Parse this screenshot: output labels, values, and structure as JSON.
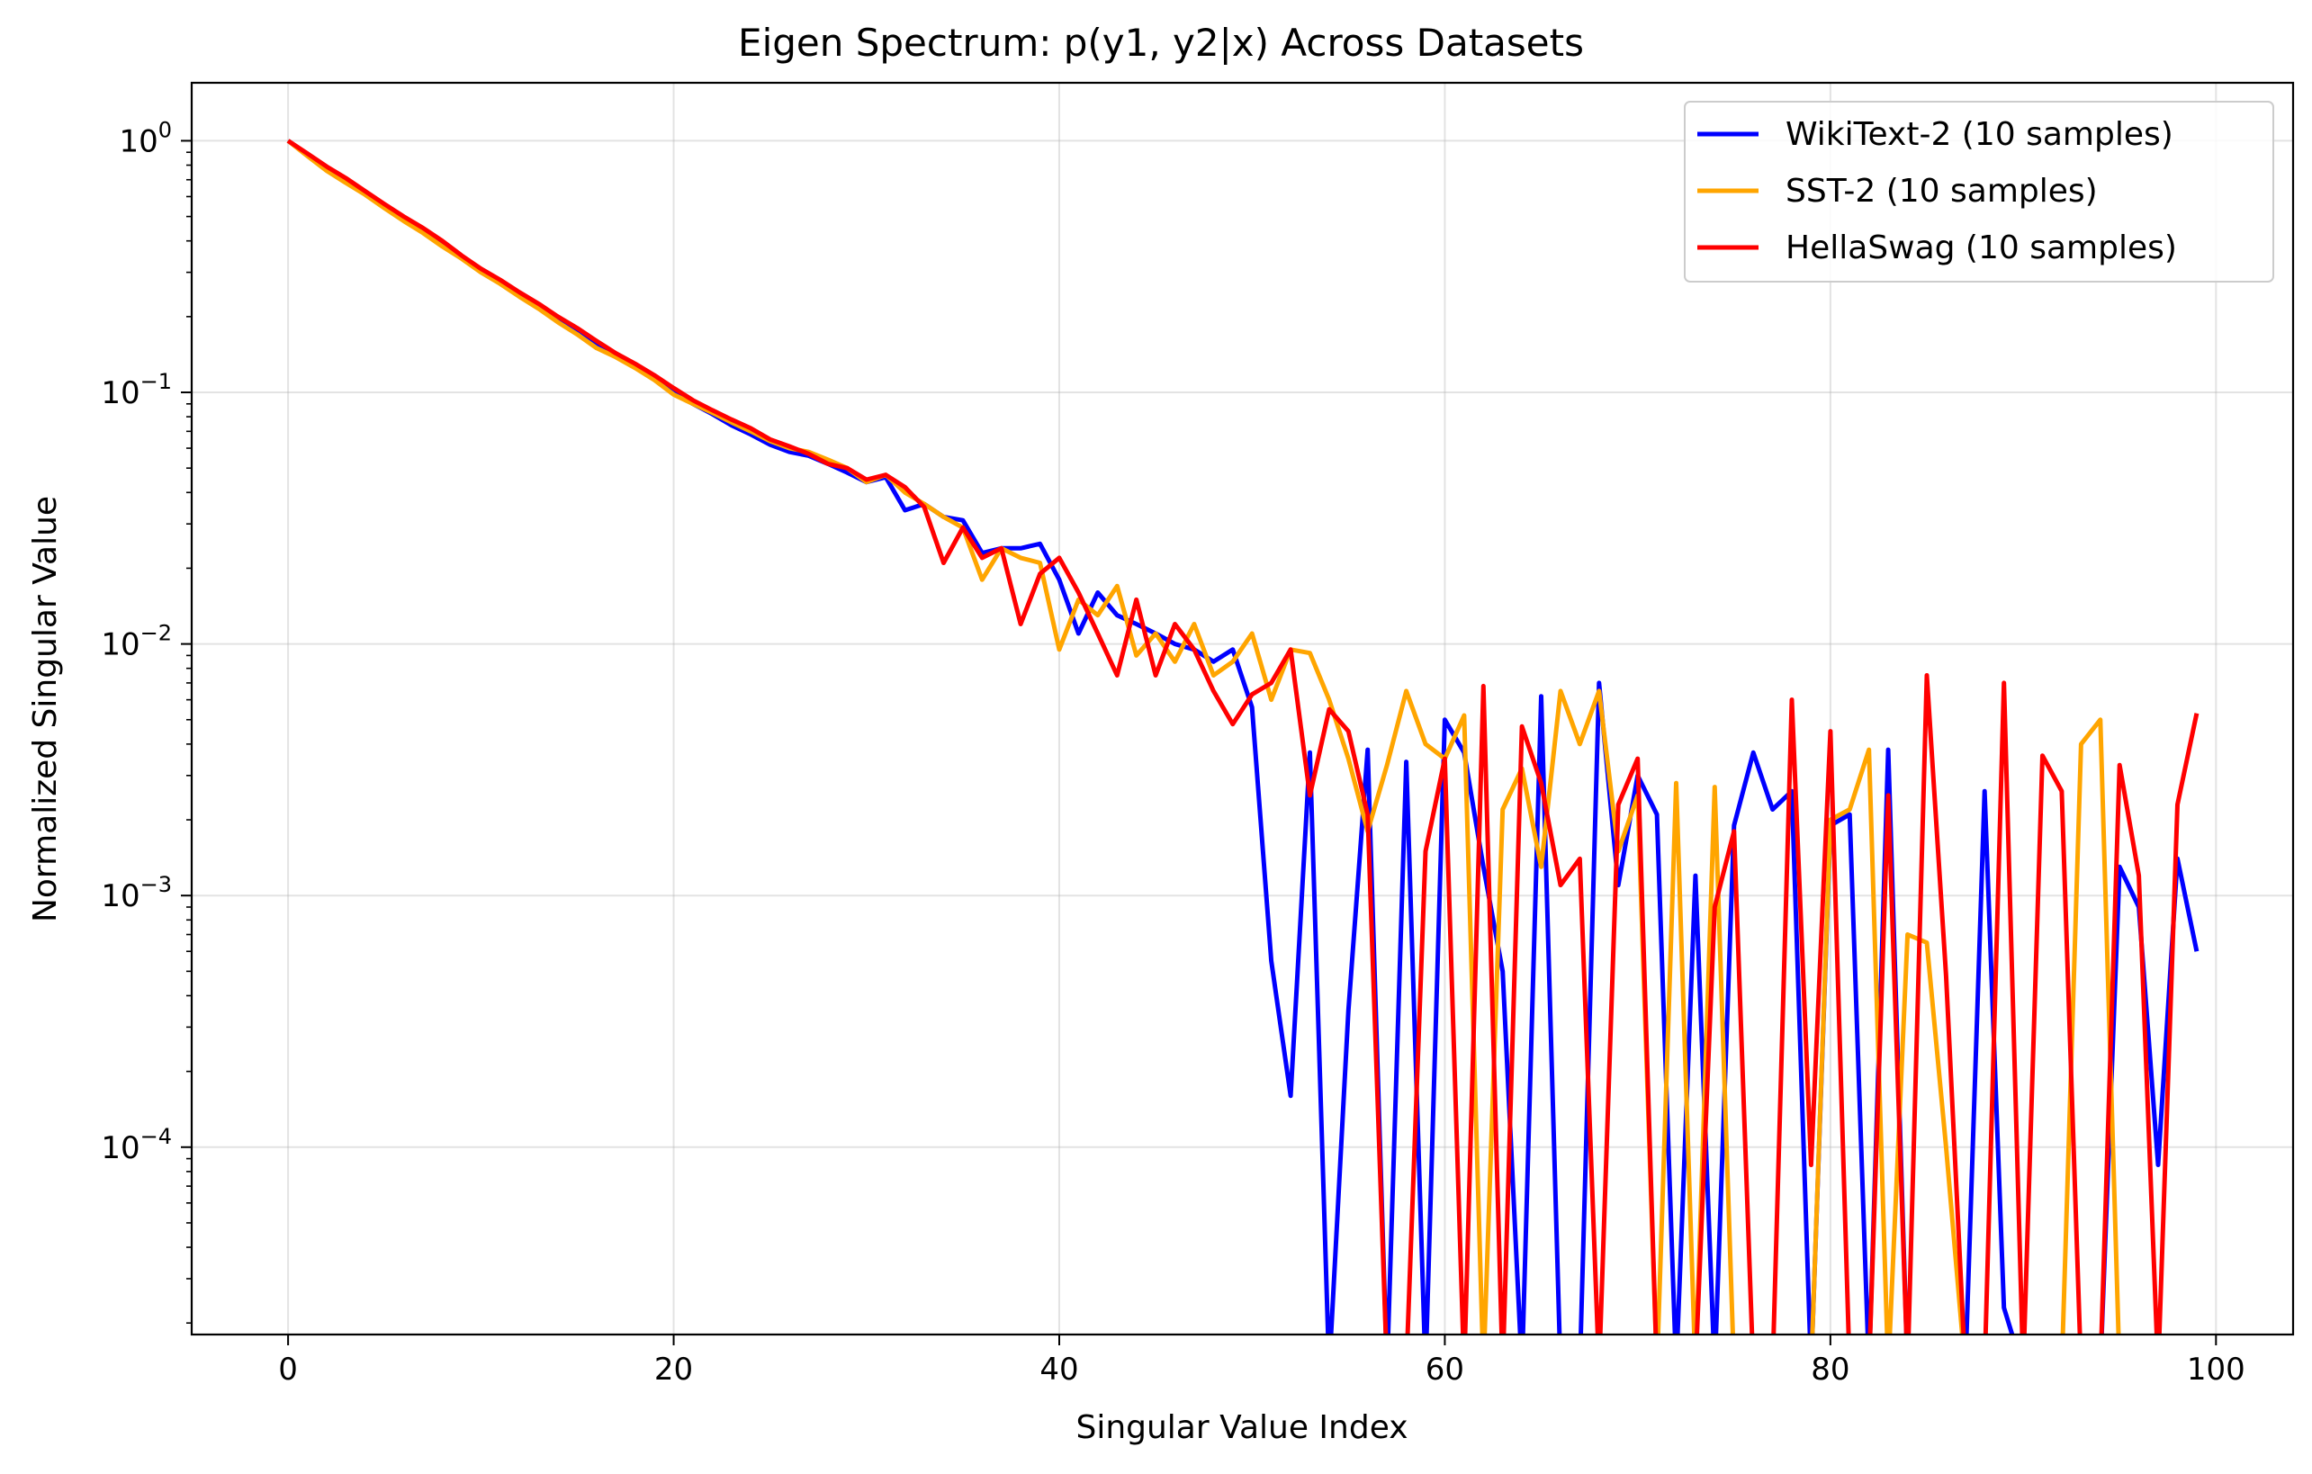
{
  "chart_data": {
    "type": "line",
    "title": "Eigen Spectrum: p(y1, y2|x) Across Datasets",
    "xlabel": "Singular Value Index",
    "ylabel": "Normalized Singular Value",
    "xlim": [
      -5,
      104
    ],
    "ylim": [
      1.8e-05,
      1.7
    ],
    "yscale": "log",
    "grid": true,
    "legend_position": "upper right",
    "x_ticks": [
      0,
      20,
      40,
      60,
      80,
      100
    ],
    "x_tick_labels": [
      "0",
      "20",
      "40",
      "60",
      "80",
      "100"
    ],
    "y_ticks": [
      {
        "value": 1,
        "base": "10",
        "exp": "0"
      },
      {
        "value": 0.1,
        "base": "10",
        "exp": "−1"
      },
      {
        "value": 0.01,
        "base": "10",
        "exp": "−2"
      },
      {
        "value": 0.001,
        "base": "10",
        "exp": "−3"
      },
      {
        "value": 0.0001,
        "base": "10",
        "exp": "−4"
      }
    ],
    "series": [
      {
        "name": "WikiText-2 (10 samples)",
        "color": "#0000ff",
        "x": [
          0,
          1,
          2,
          3,
          4,
          5,
          6,
          7,
          8,
          9,
          10,
          11,
          12,
          13,
          14,
          15,
          16,
          17,
          18,
          19,
          20,
          21,
          22,
          23,
          24,
          25,
          26,
          27,
          28,
          29,
          30,
          31,
          32,
          33,
          34,
          35,
          36,
          37,
          38,
          39,
          40,
          41,
          42,
          43,
          44,
          45,
          46,
          47,
          48,
          49,
          50,
          51,
          52,
          53,
          54,
          55,
          56,
          57,
          58,
          59,
          60,
          61,
          62,
          63,
          64,
          65,
          66,
          67,
          68,
          69,
          70,
          71,
          72,
          73,
          74,
          75,
          76,
          77,
          78,
          79,
          80,
          81,
          82,
          83,
          84,
          85,
          86,
          87,
          88,
          89,
          90,
          91,
          92,
          93,
          94,
          95,
          96,
          97,
          98,
          99
        ],
        "values": [
          1.0,
          0.88,
          0.78,
          0.7,
          0.62,
          0.55,
          0.49,
          0.44,
          0.39,
          0.345,
          0.305,
          0.275,
          0.245,
          0.22,
          0.195,
          0.175,
          0.155,
          0.14,
          0.128,
          0.114,
          0.1,
          0.09,
          0.082,
          0.074,
          0.068,
          0.062,
          0.058,
          0.056,
          0.052,
          0.048,
          0.044,
          0.046,
          0.034,
          0.036,
          0.032,
          0.031,
          0.023,
          0.024,
          0.024,
          0.025,
          0.018,
          0.011,
          0.016,
          0.013,
          0.012,
          0.011,
          0.01,
          0.0095,
          0.0085,
          0.0095,
          0.0056,
          0.00055,
          0.00016,
          0.0037,
          null,
          0.00035,
          0.0038,
          null,
          0.0034,
          null,
          0.005,
          0.0037,
          0.0013,
          0.0005,
          null,
          0.0062,
          null,
          null,
          0.007,
          0.0011,
          0.003,
          0.0021,
          null,
          0.0012,
          null,
          0.0019,
          0.0037,
          0.0022,
          0.0026,
          null,
          0.0019,
          0.0021,
          null,
          0.0038,
          null,
          null,
          null,
          null,
          0.0026,
          2.3e-05,
          null,
          null,
          null,
          null,
          null,
          0.0013,
          0.0009,
          8.5e-05,
          0.0014,
          0.0006
        ]
      },
      {
        "name": "SST-2 (10 samples)",
        "color": "#ffa500",
        "x": [
          0,
          1,
          2,
          3,
          4,
          5,
          6,
          7,
          8,
          9,
          10,
          11,
          12,
          13,
          14,
          15,
          16,
          17,
          18,
          19,
          20,
          21,
          22,
          23,
          24,
          25,
          26,
          27,
          28,
          29,
          30,
          31,
          32,
          33,
          34,
          35,
          36,
          37,
          38,
          39,
          40,
          41,
          42,
          43,
          44,
          45,
          46,
          47,
          48,
          49,
          50,
          51,
          52,
          53,
          54,
          55,
          56,
          57,
          58,
          59,
          60,
          61,
          62,
          63,
          64,
          65,
          66,
          67,
          68,
          69,
          70,
          71,
          72,
          73,
          74,
          75,
          76,
          77,
          78,
          79,
          80,
          81,
          82,
          83,
          84,
          85,
          86,
          87,
          88,
          89,
          90,
          91,
          92,
          93,
          94,
          95,
          96,
          97,
          98,
          99
        ],
        "values": [
          1.0,
          0.87,
          0.76,
          0.68,
          0.61,
          0.54,
          0.48,
          0.43,
          0.38,
          0.34,
          0.3,
          0.27,
          0.24,
          0.215,
          0.19,
          0.17,
          0.15,
          0.138,
          0.125,
          0.112,
          0.098,
          0.09,
          0.083,
          0.076,
          0.07,
          0.064,
          0.06,
          0.058,
          0.054,
          0.05,
          0.044,
          0.047,
          0.04,
          0.036,
          0.032,
          0.029,
          0.018,
          0.024,
          0.022,
          0.021,
          0.0095,
          0.015,
          0.013,
          0.017,
          0.009,
          0.011,
          0.0085,
          0.012,
          0.0075,
          0.0085,
          0.011,
          0.006,
          0.0095,
          0.0092,
          0.006,
          0.0035,
          0.0018,
          0.0033,
          0.0065,
          0.004,
          0.0035,
          0.0052,
          null,
          0.0022,
          0.0032,
          0.0013,
          0.0065,
          0.004,
          0.0065,
          0.0015,
          0.0025,
          null,
          0.0028,
          null,
          0.0027,
          null,
          null,
          null,
          null,
          null,
          0.002,
          0.0022,
          0.0038,
          null,
          0.0007,
          0.00065,
          0.0001,
          null,
          null,
          null,
          null,
          null,
          null,
          0.004,
          0.005,
          null,
          null,
          null,
          null,
          null
        ]
      },
      {
        "name": "HellaSwag (10 samples)",
        "color": "#ff0000",
        "x": [
          0,
          1,
          2,
          3,
          4,
          5,
          6,
          7,
          8,
          9,
          10,
          11,
          12,
          13,
          14,
          15,
          16,
          17,
          18,
          19,
          20,
          21,
          22,
          23,
          24,
          25,
          26,
          27,
          28,
          29,
          30,
          31,
          32,
          33,
          34,
          35,
          36,
          37,
          38,
          39,
          40,
          41,
          42,
          43,
          44,
          45,
          46,
          47,
          48,
          49,
          50,
          51,
          52,
          53,
          54,
          55,
          56,
          57,
          58,
          59,
          60,
          61,
          62,
          63,
          64,
          65,
          66,
          67,
          68,
          69,
          70,
          71,
          72,
          73,
          74,
          75,
          76,
          77,
          78,
          79,
          80,
          81,
          82,
          83,
          84,
          85,
          86,
          87,
          88,
          89,
          90,
          91,
          92,
          93,
          94,
          95,
          96,
          97,
          98,
          99
        ],
        "values": [
          1.0,
          0.89,
          0.79,
          0.71,
          0.63,
          0.56,
          0.5,
          0.45,
          0.4,
          0.35,
          0.31,
          0.28,
          0.25,
          0.225,
          0.2,
          0.18,
          0.16,
          0.143,
          0.13,
          0.117,
          0.104,
          0.093,
          0.085,
          0.078,
          0.072,
          0.065,
          0.061,
          0.057,
          0.052,
          0.05,
          0.045,
          0.047,
          0.042,
          0.035,
          0.021,
          0.029,
          0.022,
          0.024,
          0.012,
          0.019,
          0.022,
          0.016,
          0.011,
          0.0075,
          0.015,
          0.0075,
          0.012,
          0.0095,
          0.0065,
          0.0048,
          0.0063,
          0.007,
          0.0095,
          0.0025,
          0.0055,
          0.0045,
          0.0021,
          null,
          null,
          0.0015,
          0.0035,
          null,
          0.0068,
          null,
          0.0047,
          0.0028,
          0.0011,
          0.0014,
          null,
          0.0023,
          0.0035,
          null,
          null,
          null,
          0.0009,
          0.0018,
          null,
          null,
          0.006,
          8.5e-05,
          0.0045,
          null,
          null,
          0.0025,
          null,
          0.0075,
          0.00048,
          null,
          null,
          0.007,
          null,
          0.0036,
          0.0026,
          null,
          null,
          0.0033,
          0.0012,
          null,
          0.0023,
          0.0053
        ]
      }
    ]
  }
}
